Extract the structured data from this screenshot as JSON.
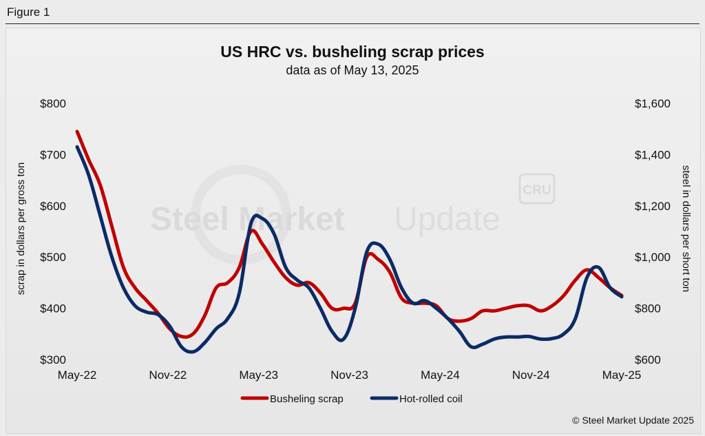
{
  "figure_label": "Figure 1",
  "watermark": {
    "brand_bold": "Steel Market",
    "brand_light": "Update",
    "badge": "CRU"
  },
  "copyright": "© Steel Market Update 2025",
  "colors": {
    "scrap": "#c00000",
    "hrc": "#0b2a66",
    "background": "#ececec"
  },
  "chart_data": {
    "type": "line",
    "title": "US HRC vs. busheling scrap prices",
    "subtitle": "data as of May 13, 2025",
    "ylabel_left": "scrap in dollars per gross ton",
    "ylabel_right": "steel in dollars per short ton",
    "x_tick_labels": [
      "May-22",
      "Nov-22",
      "May-23",
      "Nov-23",
      "May-24",
      "Nov-24",
      "May-25"
    ],
    "y_left": {
      "min": 300,
      "max": 800,
      "ticks": [
        "$300",
        "$400",
        "$500",
        "$600",
        "$700",
        "$800"
      ]
    },
    "y_right": {
      "min": 600,
      "max": 1600,
      "ticks": [
        "$600",
        "$800",
        "$1,000",
        "$1,200",
        "$1,400",
        "$1,600"
      ]
    },
    "legend_position": "bottom-center",
    "grid": false,
    "series": [
      {
        "name": "Busheling scrap",
        "axis": "left",
        "points": [
          [
            0,
            745
          ],
          [
            1,
            690
          ],
          [
            2,
            640
          ],
          [
            3,
            560
          ],
          [
            4,
            480
          ],
          [
            5,
            440
          ],
          [
            6,
            415
          ],
          [
            7,
            390
          ],
          [
            8,
            360
          ],
          [
            9,
            345
          ],
          [
            10,
            350
          ],
          [
            11,
            385
          ],
          [
            12,
            440
          ],
          [
            13,
            450
          ],
          [
            14,
            480
          ],
          [
            15,
            550
          ],
          [
            16,
            525
          ],
          [
            17,
            490
          ],
          [
            18,
            460
          ],
          [
            19,
            445
          ],
          [
            20,
            450
          ],
          [
            21,
            430
          ],
          [
            22,
            400
          ],
          [
            23,
            400
          ],
          [
            24,
            410
          ],
          [
            25,
            500
          ],
          [
            26,
            495
          ],
          [
            27,
            470
          ],
          [
            28,
            420
          ],
          [
            29,
            410
          ],
          [
            30,
            410
          ],
          [
            31,
            405
          ],
          [
            32,
            380
          ],
          [
            33,
            375
          ],
          [
            34,
            380
          ],
          [
            35,
            395
          ],
          [
            36,
            395
          ],
          [
            37,
            400
          ],
          [
            38,
            405
          ],
          [
            39,
            405
          ],
          [
            40,
            395
          ],
          [
            41,
            405
          ],
          [
            42,
            425
          ],
          [
            43,
            455
          ],
          [
            44,
            475
          ],
          [
            45,
            460
          ],
          [
            46,
            440
          ],
          [
            47,
            425
          ]
        ]
      },
      {
        "name": "Hot-rolled coil",
        "axis": "right",
        "points": [
          [
            0,
            1430
          ],
          [
            1,
            1320
          ],
          [
            2,
            1160
          ],
          [
            3,
            1000
          ],
          [
            4,
            880
          ],
          [
            5,
            810
          ],
          [
            6,
            785
          ],
          [
            7,
            775
          ],
          [
            8,
            730
          ],
          [
            9,
            650
          ],
          [
            10,
            630
          ],
          [
            11,
            665
          ],
          [
            12,
            720
          ],
          [
            13,
            760
          ],
          [
            14,
            860
          ],
          [
            15,
            1130
          ],
          [
            16,
            1150
          ],
          [
            17,
            1090
          ],
          [
            18,
            960
          ],
          [
            19,
            910
          ],
          [
            20,
            880
          ],
          [
            21,
            800
          ],
          [
            22,
            710
          ],
          [
            23,
            680
          ],
          [
            24,
            800
          ],
          [
            25,
            1020
          ],
          [
            26,
            1050
          ],
          [
            27,
            990
          ],
          [
            28,
            880
          ],
          [
            29,
            820
          ],
          [
            30,
            830
          ],
          [
            31,
            800
          ],
          [
            32,
            760
          ],
          [
            33,
            710
          ],
          [
            34,
            650
          ],
          [
            35,
            660
          ],
          [
            36,
            680
          ],
          [
            37,
            688
          ],
          [
            38,
            688
          ],
          [
            39,
            690
          ],
          [
            40,
            680
          ],
          [
            41,
            682
          ],
          [
            42,
            700
          ],
          [
            43,
            760
          ],
          [
            44,
            920
          ],
          [
            45,
            960
          ],
          [
            46,
            880
          ],
          [
            47,
            845
          ]
        ]
      }
    ]
  }
}
